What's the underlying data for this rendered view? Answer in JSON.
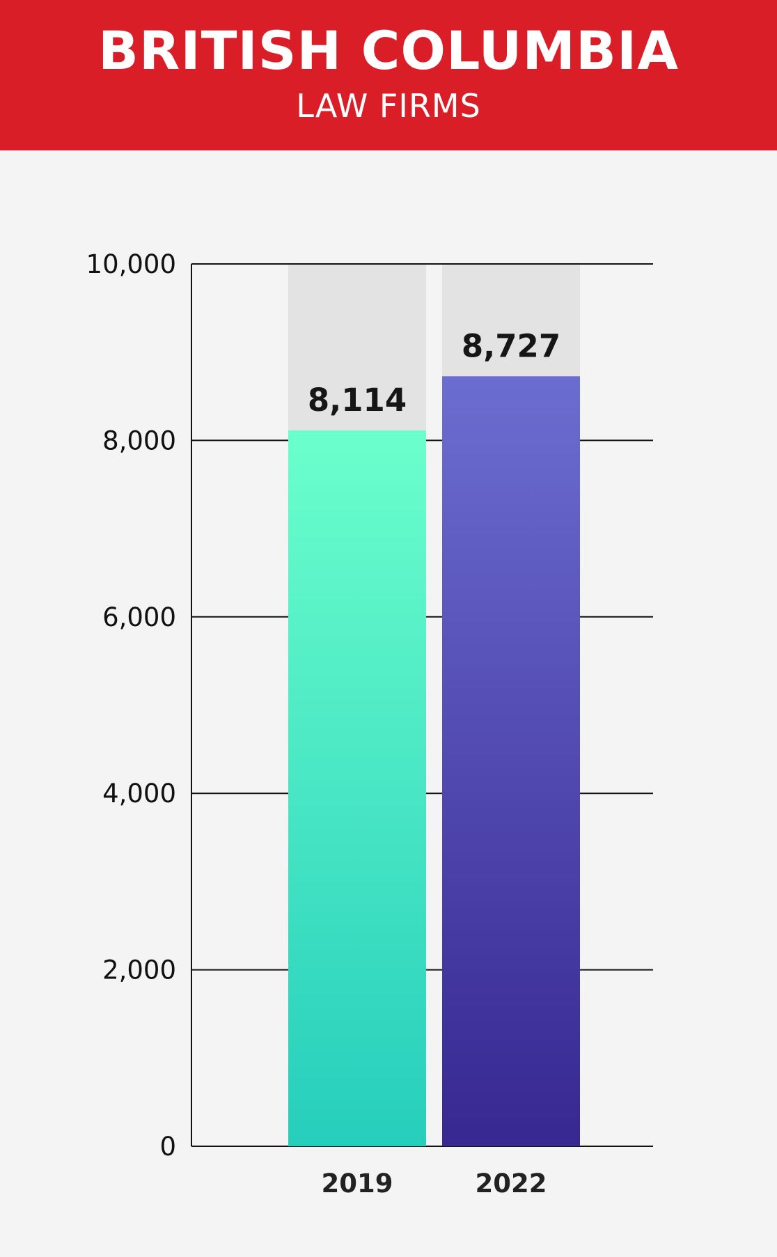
{
  "header": {
    "title": "BRITISH COLUMBIA",
    "subtitle": "LAW FIRMS"
  },
  "colors": {
    "header_bg": "#da1e27",
    "page_bg": "#f4f4f4",
    "bar_track": "#e3e3e3",
    "bar_2019_top": "#6bffcc",
    "bar_2019_bottom": "#26cebc",
    "bar_2022_top": "#6c6dd0",
    "bar_2022_bottom": "#372791"
  },
  "chart_data": {
    "type": "bar",
    "title": "BRITISH COLUMBIA",
    "subtitle": "LAW FIRMS",
    "categories": [
      "2019",
      "2022"
    ],
    "values": [
      8114,
      8727
    ],
    "value_labels": [
      "8,114",
      "8,727"
    ],
    "ylim": [
      0,
      10000
    ],
    "yticks": [
      0,
      2000,
      4000,
      6000,
      8000,
      10000
    ],
    "ytick_labels": [
      "0",
      "2,000",
      "4,000",
      "6,000",
      "8,000",
      "10,000"
    ],
    "xlabel": "",
    "ylabel": "",
    "grid": true,
    "legend": "none"
  }
}
